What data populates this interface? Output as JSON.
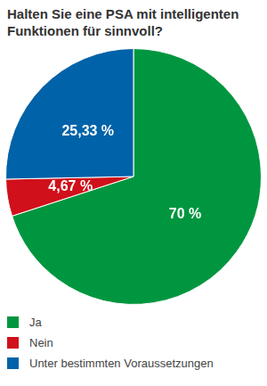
{
  "chart_data": {
    "type": "pie",
    "title": "Halten Sie eine PSA mit intelligenten Funktionen für sinnvoll?",
    "categories": [
      "Ja",
      "Nein",
      "Unter bestimmten Voraussetzungen"
    ],
    "values": [
      70,
      4.67,
      25.33
    ],
    "value_labels": [
      "70 %",
      "4,67 %",
      "25,33 %"
    ],
    "colors": [
      "#00963f",
      "#d0101a",
      "#0062a8"
    ],
    "data_labels": true,
    "legend": "bottom"
  }
}
